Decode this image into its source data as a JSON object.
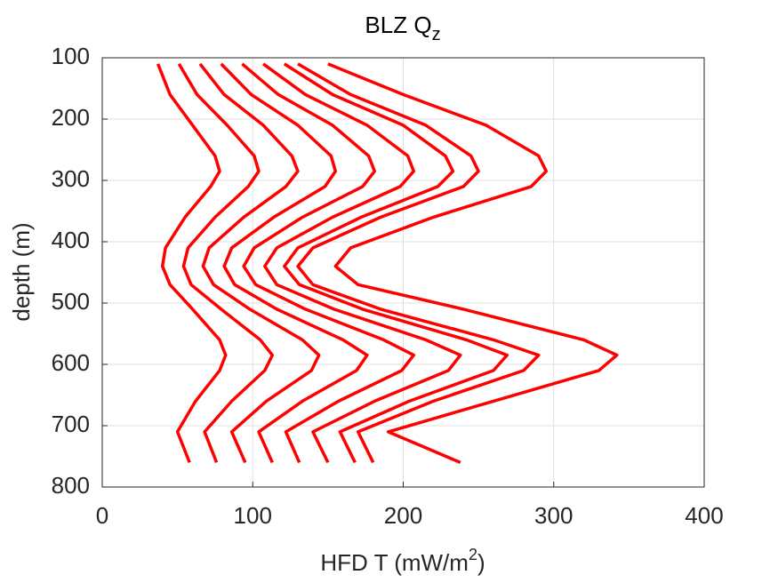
{
  "chart_data": {
    "type": "line",
    "orientation": "horizontal",
    "title": {
      "text": "BLZ Q",
      "subscript": "z"
    },
    "xlabel": {
      "text": "HFD T (mW/m",
      "superscript": "2",
      "close": ")"
    },
    "ylabel": "depth (m)",
    "xlim": [
      0,
      400
    ],
    "xticks": [
      0,
      100,
      200,
      300,
      400
    ],
    "ylim": [
      100,
      800
    ],
    "yticks": [
      100,
      200,
      300,
      400,
      500,
      600,
      700,
      800
    ],
    "y_direction": "reverse",
    "grid": true,
    "y": [
      110,
      160,
      210,
      260,
      285,
      310,
      360,
      410,
      440,
      470,
      510,
      560,
      585,
      610,
      660,
      710,
      760
    ],
    "series": [
      {
        "color": "#ff0000",
        "values": [
          37,
          45,
          60,
          75,
          78,
          72,
          55,
          42,
          40,
          45,
          60,
          78,
          82,
          78,
          62,
          50,
          58
        ]
      },
      {
        "color": "#ff0000",
        "values": [
          51,
          63,
          83,
          101,
          104,
          97,
          75,
          57,
          54,
          59,
          79,
          105,
          113,
          108,
          86,
          68,
          76
        ]
      },
      {
        "color": "#ff0000",
        "values": [
          65,
          81,
          107,
          126,
          130,
          122,
          94,
          71,
          67,
          74,
          98,
          133,
          144,
          139,
          109,
          86,
          95
        ]
      },
      {
        "color": "#ff0000",
        "values": [
          79,
          99,
          130,
          152,
          155,
          148,
          114,
          86,
          81,
          88,
          116,
          160,
          176,
          169,
          133,
          104,
          113
        ]
      },
      {
        "color": "#ff0000",
        "values": [
          93,
          117,
          153,
          177,
          181,
          173,
          133,
          101,
          94,
          102,
          135,
          187,
          207,
          199,
          157,
          122,
          131
        ]
      },
      {
        "color": "#ff0000",
        "values": [
          107,
          135,
          176,
          203,
          207,
          198,
          153,
          116,
          108,
          116,
          154,
          215,
          238,
          230,
          181,
          140,
          150
        ]
      },
      {
        "color": "#ff0000",
        "values": [
          121,
          153,
          200,
          228,
          233,
          223,
          172,
          130,
          121,
          131,
          173,
          242,
          269,
          260,
          204,
          158,
          168
        ]
      },
      {
        "color": "#ff0000",
        "values": [
          130,
          165,
          215,
          245,
          250,
          240,
          185,
          140,
          130,
          140,
          185,
          260,
          290,
          280,
          220,
          170,
          180
        ]
      },
      {
        "color": "#ff0000",
        "values": [
          150,
          200,
          255,
          290,
          295,
          285,
          220,
          165,
          155,
          170,
          240,
          320,
          342,
          330,
          260,
          190,
          238
        ]
      }
    ]
  }
}
